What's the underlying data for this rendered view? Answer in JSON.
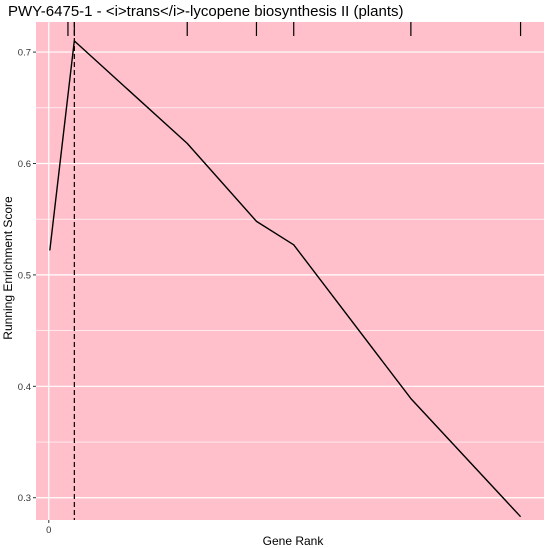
{
  "chart_data": {
    "type": "line",
    "title": "PWY-6475-1 - <i>trans</i>-lycopene biosynthesis II (plants)",
    "xlabel": "Gene Rank",
    "ylabel": "Running Enrichment Score",
    "xlim": [
      -12,
      465
    ],
    "ylim": [
      0.28,
      0.727
    ],
    "x_ticks": [
      0
    ],
    "y_ticks": [
      0.3,
      0.4,
      0.5,
      0.6,
      0.7
    ],
    "y_tick_labels": [
      "0.3",
      "0.4",
      "0.5",
      "0.6",
      "0.7"
    ],
    "x_tick_labels": [
      "0"
    ],
    "grid": true,
    "series": [
      {
        "x": [
          1,
          24,
          130,
          195,
          230,
          340,
          443
        ],
        "y": [
          0.522,
          0.71,
          0.618,
          0.548,
          0.527,
          0.389,
          0.283
        ]
      }
    ],
    "gene_hits": [
      18,
      24,
      130,
      195,
      230,
      340,
      443
    ],
    "peak_x": 24,
    "colors": {
      "panel_background": "#ffc0cb",
      "grid": "#ffffff",
      "line": "#000000"
    }
  }
}
